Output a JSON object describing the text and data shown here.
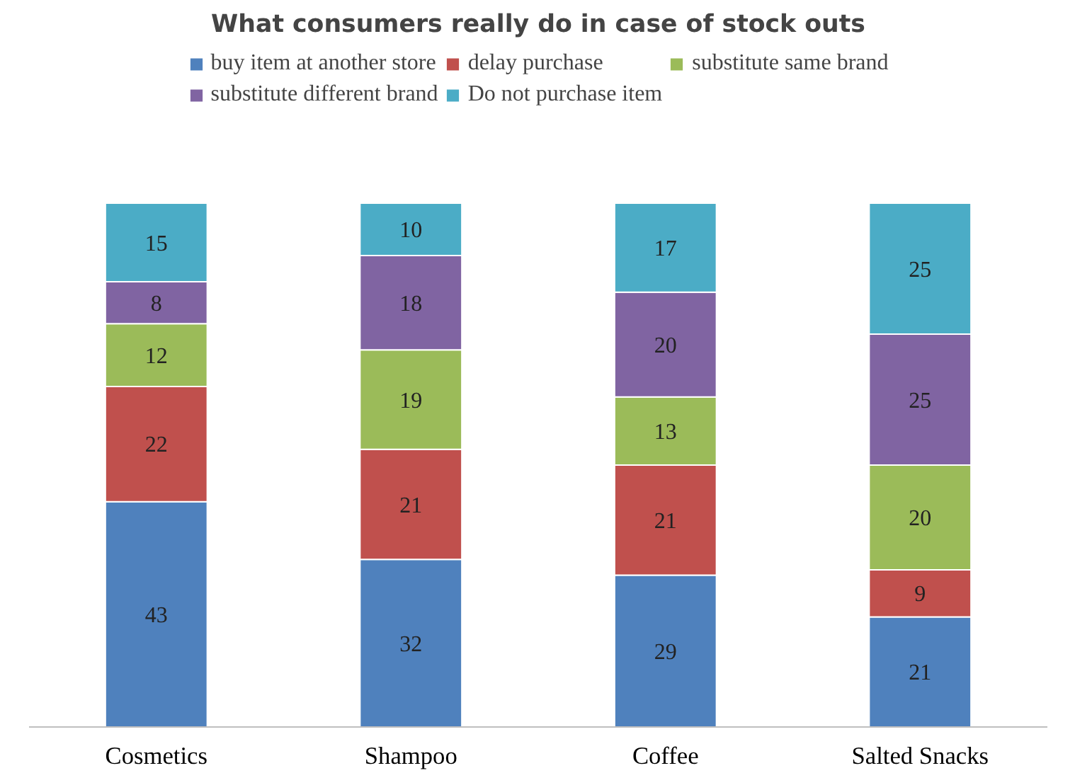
{
  "chart_data": {
    "type": "bar",
    "title": "What consumers really do in case of stock outs",
    "categories": [
      "Cosmetics",
      "Shampoo",
      "Coffee",
      "Salted Snacks"
    ],
    "stacked": true,
    "data_labels": true,
    "legend": "top",
    "series": [
      {
        "name": "buy item at another store",
        "color": "#4f81bd",
        "values": [
          43,
          32,
          29,
          21
        ]
      },
      {
        "name": "delay purchase",
        "color": "#c0504d",
        "values": [
          22,
          21,
          21,
          9
        ]
      },
      {
        "name": "substitute same brand",
        "color": "#9bbb59",
        "values": [
          12,
          19,
          13,
          20
        ]
      },
      {
        "name": "substitute different brand",
        "color": "#8064a2",
        "values": [
          8,
          18,
          20,
          25
        ]
      },
      {
        "name": "Do not purchase item",
        "color": "#4bacc6",
        "values": [
          15,
          10,
          17,
          25
        ]
      }
    ]
  }
}
